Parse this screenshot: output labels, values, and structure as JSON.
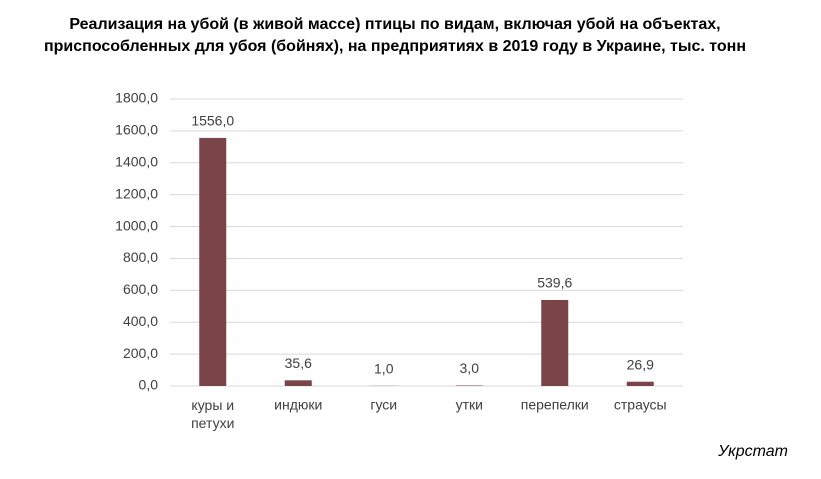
{
  "chart_data": {
    "type": "bar",
    "title": "Реализация на убой (в живой массе) птицы по видам, включая убой на объектах, приспособленных для убоя (бойнях), на предприятиях в 2019 году в Украине, тыс. тонн",
    "categories": [
      "куры и петухи",
      "индюки",
      "гуси",
      "утки",
      "перепелки",
      "страусы"
    ],
    "values": [
      1556.0,
      35.6,
      1.0,
      3.0,
      539.6,
      26.9
    ],
    "value_labels": [
      "1556,0",
      "35,6",
      "1,0",
      "3,0",
      "539,6",
      "26,9"
    ],
    "color": "#7b4449",
    "ylim": [
      0,
      1800
    ],
    "yticks": [
      {
        "value": 0,
        "label": "0,0"
      },
      {
        "value": 200,
        "label": "200,0"
      },
      {
        "value": 400,
        "label": "400,0"
      },
      {
        "value": 600,
        "label": "600,0"
      },
      {
        "value": 800,
        "label": "800,0"
      },
      {
        "value": 1000,
        "label": "1000,0"
      },
      {
        "value": 1200,
        "label": "1200,0"
      },
      {
        "value": 1400,
        "label": "1400,0"
      },
      {
        "value": 1600,
        "label": "1600,0"
      },
      {
        "value": 1800,
        "label": "1800,0"
      }
    ],
    "grid": true,
    "source": "Укрстат"
  }
}
